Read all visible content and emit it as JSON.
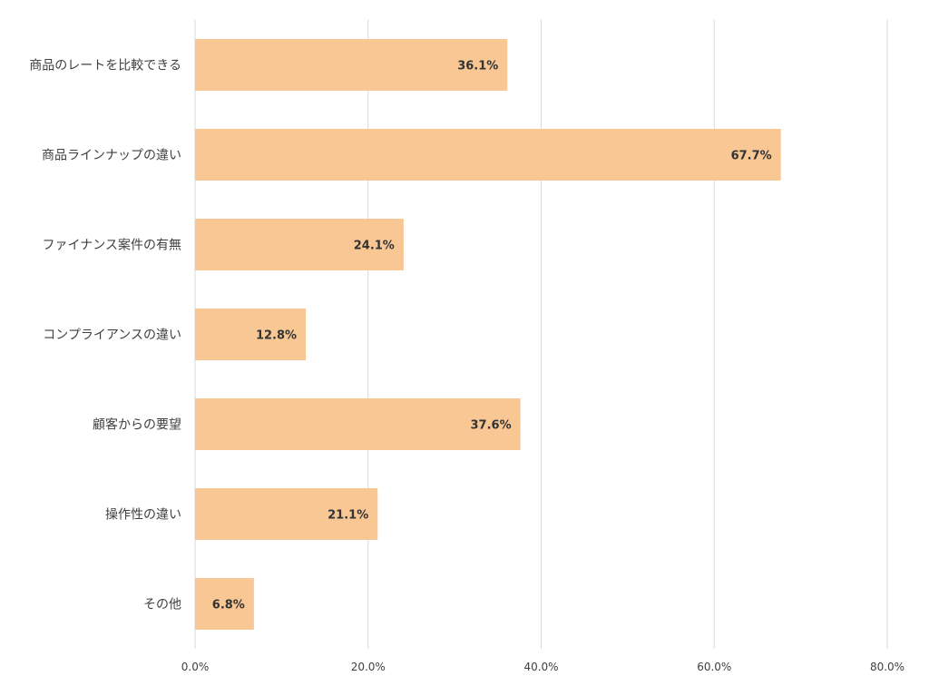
{
  "chart_data": {
    "type": "bar",
    "orientation": "horizontal",
    "categories": [
      "商品のレートを比較できる",
      "商品ラインナップの違い",
      "ファイナンス案件の有無",
      "コンプライアンスの違い",
      "顧客からの要望",
      "操作性の違い",
      "その他"
    ],
    "values": [
      36.1,
      67.7,
      24.1,
      12.8,
      37.6,
      21.1,
      6.8
    ],
    "value_labels": [
      "36.1%",
      "67.7%",
      "24.1%",
      "12.8%",
      "37.6%",
      "21.1%",
      "6.8%"
    ],
    "x_ticks": [
      "0.0%",
      "20.0%",
      "40.0%",
      "60.0%",
      "80.0%"
    ],
    "xlim": [
      0,
      80
    ],
    "title": "",
    "xlabel": "",
    "ylabel": "",
    "grid": true,
    "legend": "none",
    "colors": {
      "bar": "#f8c793",
      "grid": "#d9d9d9",
      "text": "#404040"
    }
  }
}
